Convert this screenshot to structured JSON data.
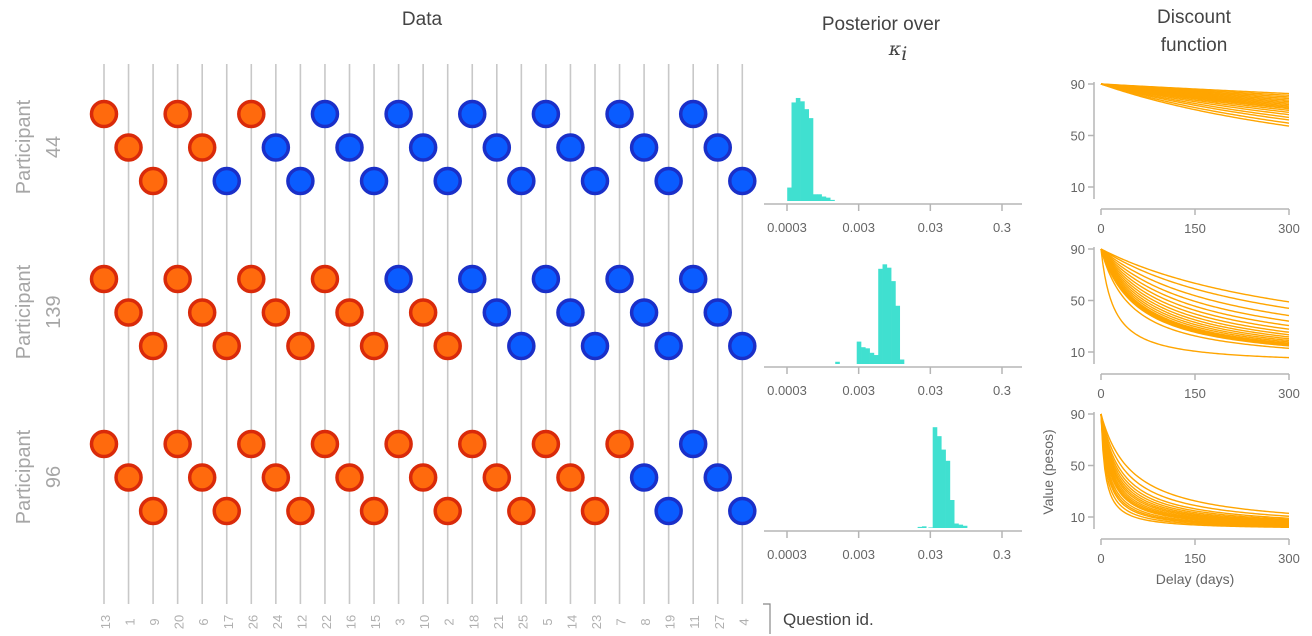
{
  "titles": {
    "data": "Data",
    "posterior_line1": "Posterior over",
    "posterior_math": "κ",
    "posterior_math_sub": "i",
    "discount_line1": "Discount",
    "discount_line2": "function"
  },
  "question_axis_label": "Question id.",
  "colors": {
    "delayed_choice_fill": "#0a5cff",
    "delayed_choice_edge": "#1a2fc8",
    "immediate_choice_fill": "#ff6a0d",
    "immediate_choice_edge": "#d92a0a",
    "posterior_bars": "#40e0d0",
    "discount_curves": "#ffa500",
    "grid": "#c8c8c8"
  },
  "chart_data": [
    {
      "type": "scatter",
      "panel": "Data",
      "title": "Data",
      "xlabel": "Question id.",
      "question_ids": [
        "13",
        "1",
        "9",
        "20",
        "6",
        "17",
        "26",
        "24",
        "12",
        "22",
        "16",
        "15",
        "3",
        "10",
        "2",
        "18",
        "21",
        "25",
        "5",
        "14",
        "23",
        "7",
        "8",
        "19",
        "11",
        "27",
        "4"
      ],
      "level_pattern": "cycling top, middle, bottom",
      "participants": [
        {
          "label": "Participant 44",
          "line1": "Participant",
          "line2": "44",
          "choices": [
            "immediate",
            "immediate",
            "immediate",
            "immediate",
            "immediate",
            "delayed",
            "immediate",
            "delayed",
            "delayed",
            "delayed",
            "delayed",
            "delayed",
            "delayed",
            "delayed",
            "delayed",
            "delayed",
            "delayed",
            "delayed",
            "delayed",
            "delayed",
            "delayed",
            "delayed",
            "delayed",
            "delayed",
            "delayed",
            "delayed",
            "delayed"
          ]
        },
        {
          "label": "Participant 139",
          "line1": "Participant",
          "line2": "139",
          "choices": [
            "immediate",
            "immediate",
            "immediate",
            "immediate",
            "immediate",
            "immediate",
            "immediate",
            "immediate",
            "immediate",
            "immediate",
            "immediate",
            "immediate",
            "delayed",
            "immediate",
            "immediate",
            "delayed",
            "delayed",
            "delayed",
            "delayed",
            "delayed",
            "delayed",
            "delayed",
            "delayed",
            "delayed",
            "delayed",
            "delayed",
            "delayed"
          ]
        },
        {
          "label": "Participant 96",
          "line1": "Participant",
          "line2": "96",
          "choices": [
            "immediate",
            "immediate",
            "immediate",
            "immediate",
            "immediate",
            "immediate",
            "immediate",
            "immediate",
            "immediate",
            "immediate",
            "immediate",
            "immediate",
            "immediate",
            "immediate",
            "immediate",
            "immediate",
            "immediate",
            "immediate",
            "immediate",
            "immediate",
            "immediate",
            "immediate",
            "delayed",
            "delayed",
            "delayed",
            "delayed",
            "delayed"
          ]
        }
      ]
    },
    {
      "type": "bar",
      "panel": "Posterior over κi",
      "x_scale": "log",
      "xlim": [
        0.0003,
        0.3
      ],
      "x_ticks": [
        "0.0003",
        "0.003",
        "0.03",
        "0.3"
      ],
      "x_tick_values": [
        0.0003,
        0.003,
        0.03,
        0.3
      ],
      "histograms": [
        {
          "participant": "44",
          "bins_log10k": [
            {
              "lo": -3.52,
              "hi": -3.46,
              "density": 0.12
            },
            {
              "lo": -3.46,
              "hi": -3.4,
              "density": 0.88
            },
            {
              "lo": -3.4,
              "hi": -3.34,
              "density": 0.92
            },
            {
              "lo": -3.34,
              "hi": -3.28,
              "density": 0.89
            },
            {
              "lo": -3.28,
              "hi": -3.22,
              "density": 0.82
            },
            {
              "lo": -3.22,
              "hi": -3.16,
              "density": 0.74
            },
            {
              "lo": -3.16,
              "hi": -3.1,
              "density": 0.06
            },
            {
              "lo": -3.1,
              "hi": -3.04,
              "density": 0.06
            },
            {
              "lo": -3.04,
              "hi": -2.98,
              "density": 0.04
            },
            {
              "lo": -2.98,
              "hi": -2.92,
              "density": 0.03
            },
            {
              "lo": -2.92,
              "hi": -2.86,
              "density": 0.01
            }
          ]
        },
        {
          "participant": "139",
          "bins_log10k": [
            {
              "lo": -2.85,
              "hi": -2.79,
              "density": 0.02
            },
            {
              "lo": -2.55,
              "hi": -2.49,
              "density": 0.2
            },
            {
              "lo": -2.49,
              "hi": -2.43,
              "density": 0.15
            },
            {
              "lo": -2.43,
              "hi": -2.37,
              "density": 0.14
            },
            {
              "lo": -2.37,
              "hi": -2.31,
              "density": 0.1
            },
            {
              "lo": -2.31,
              "hi": -2.25,
              "density": 0.08
            },
            {
              "lo": -2.25,
              "hi": -2.19,
              "density": 0.85
            },
            {
              "lo": -2.19,
              "hi": -2.13,
              "density": 0.89
            },
            {
              "lo": -2.13,
              "hi": -2.07,
              "density": 0.86
            },
            {
              "lo": -2.07,
              "hi": -2.01,
              "density": 0.74
            },
            {
              "lo": -2.01,
              "hi": -1.95,
              "density": 0.52
            },
            {
              "lo": -1.95,
              "hi": -1.89,
              "density": 0.04
            }
          ]
        },
        {
          "participant": "96",
          "bins_log10k": [
            {
              "lo": -1.7,
              "hi": -1.64,
              "density": 0.01
            },
            {
              "lo": -1.64,
              "hi": -1.58,
              "density": 0.015
            },
            {
              "lo": -1.55,
              "hi": -1.49,
              "density": 0.005
            },
            {
              "lo": -1.49,
              "hi": -1.43,
              "density": 0.9
            },
            {
              "lo": -1.43,
              "hi": -1.37,
              "density": 0.82
            },
            {
              "lo": -1.37,
              "hi": -1.31,
              "density": 0.7
            },
            {
              "lo": -1.31,
              "hi": -1.25,
              "density": 0.6
            },
            {
              "lo": -1.25,
              "hi": -1.19,
              "density": 0.25
            },
            {
              "lo": -1.19,
              "hi": -1.13,
              "density": 0.04
            },
            {
              "lo": -1.13,
              "hi": -1.07,
              "density": 0.03
            },
            {
              "lo": -1.07,
              "hi": -1.01,
              "density": 0.02
            }
          ]
        }
      ]
    },
    {
      "type": "line",
      "panel": "Discount function",
      "title_line1": "Discount",
      "title_line2": "function",
      "xlabel": "Delay (days)",
      "ylabel": "Value (pesos)",
      "xlim": [
        0,
        300
      ],
      "ylim": [
        10,
        90
      ],
      "x_ticks": [
        "0",
        "150",
        "300"
      ],
      "x_tick_values": [
        0,
        150,
        300
      ],
      "y_ticks": [
        "10",
        "50",
        "90"
      ],
      "y_tick_values": [
        10,
        50,
        90
      ],
      "model": "V = 90 / (1 + k * delay)",
      "amount": 90,
      "curve_families": [
        {
          "participant": "44",
          "k_values": [
            0.0003,
            0.00036,
            0.00042,
            0.00048,
            0.00054,
            0.0006,
            0.00066,
            0.00072,
            0.00078,
            0.00084,
            0.0009,
            0.00098,
            0.00108,
            0.0012,
            0.00135,
            0.0015,
            0.0017,
            0.0019
          ]
        },
        {
          "participant": "139",
          "k_values": [
            0.0028,
            0.0035,
            0.0045,
            0.0055,
            0.0065,
            0.0075,
            0.0085,
            0.0095,
            0.0105,
            0.0115,
            0.0125,
            0.0135,
            0.0145,
            0.015,
            0.0155,
            0.016,
            0.0165,
            0.017,
            0.02,
            0.05
          ]
        },
        {
          "participant": "96",
          "k_values": [
            0.02,
            0.025,
            0.03,
            0.034,
            0.038,
            0.042,
            0.046,
            0.05,
            0.055,
            0.06,
            0.065,
            0.07,
            0.08,
            0.09,
            0.1,
            0.12,
            0.15
          ]
        }
      ]
    }
  ]
}
